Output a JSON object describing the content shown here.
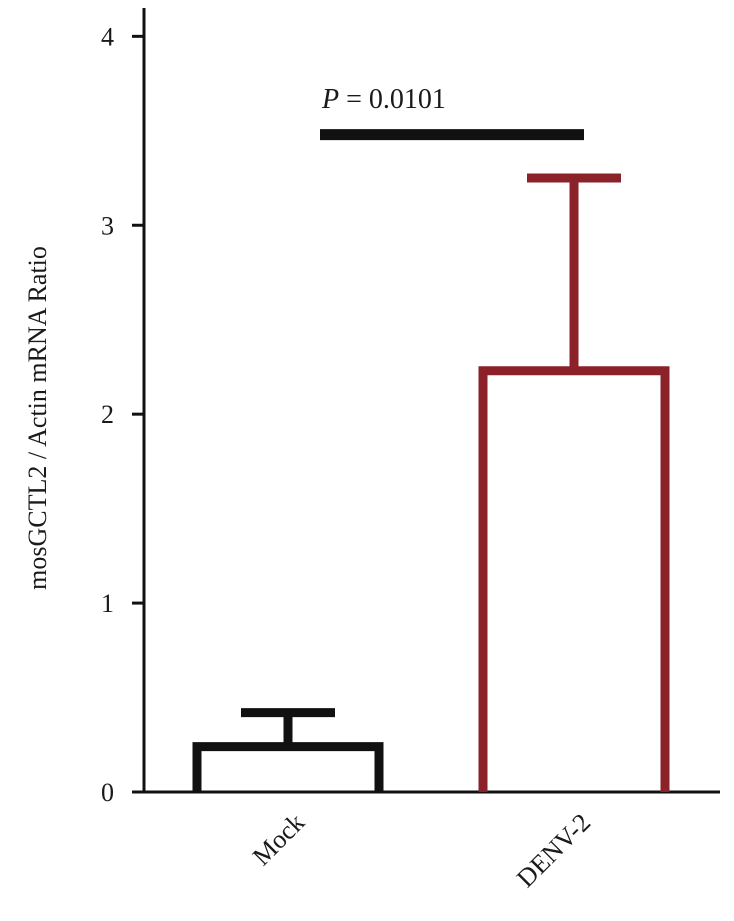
{
  "chart_data": {
    "type": "bar",
    "title": "",
    "xlabel": "",
    "ylabel": "mosGCTL2 / Actin mRNA Ratio",
    "ylim": [
      0,
      4.15
    ],
    "yticks": [
      0,
      1,
      2,
      3,
      4
    ],
    "categories": [
      "Mock",
      "DENV-2"
    ],
    "series": [
      {
        "values": [
          0.24,
          2.23
        ],
        "errors": [
          0.18,
          1.02
        ]
      }
    ],
    "colors": [
      "#111111",
      "#8b2229"
    ],
    "bar_style": "hollow",
    "grid": false,
    "legend": "none",
    "annotation": {
      "italic_part": "P",
      "rest": " = 0.0101",
      "bracket_y": 3.48,
      "from": 0,
      "to": 1
    }
  }
}
